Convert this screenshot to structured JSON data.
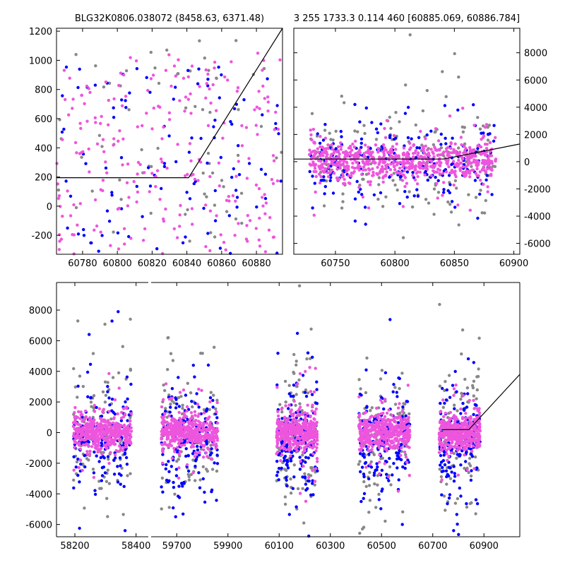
{
  "colors": {
    "series_gray": "#888888",
    "series_blue": "#0000ff",
    "series_magenta": "#ee55dd",
    "model_line": "#000000",
    "background": "#ffffff"
  },
  "chart_data": [
    {
      "id": "top-left",
      "type": "scatter",
      "title": "BLG32K0806.038072 (8458.63, 6371.48)",
      "xlim": [
        60765,
        60895
      ],
      "ylim": [
        -330,
        1220
      ],
      "xticks": [
        60780,
        60800,
        60820,
        60840,
        60860,
        60880
      ],
      "yticks": [
        -200,
        0,
        200,
        400,
        600,
        800,
        1000,
        1200
      ],
      "ytick_side": "left",
      "model_line": {
        "x": [
          60765,
          60841,
          60895
        ],
        "y": [
          195,
          195,
          1220
        ]
      },
      "series": [
        {
          "name": "gray",
          "color_key": "series_gray",
          "count": 70,
          "x_range": [
            60765,
            60895
          ],
          "y_center": 380,
          "y_spread": 800,
          "point_cloud": "uniform"
        },
        {
          "name": "blue",
          "color_key": "series_blue",
          "count": 110,
          "x_range": [
            60765,
            60895
          ],
          "y_center": 300,
          "y_spread": 700,
          "point_cloud": "uniform"
        },
        {
          "name": "magenta",
          "color_key": "series_magenta",
          "count": 260,
          "x_range": [
            60765,
            60895
          ],
          "y_center": 330,
          "y_spread": 760,
          "point_cloud": "uniform"
        }
      ]
    },
    {
      "id": "top-right",
      "type": "scatter",
      "title": "3 255 1733.3 0.114 460 [60885.069, 60886.784]",
      "xlim": [
        60715,
        60905
      ],
      "ylim": [
        -6800,
        9800
      ],
      "xticks": [
        60750,
        60800,
        60850,
        60900
      ],
      "yticks": [
        -6000,
        -4000,
        -2000,
        0,
        2000,
        4000,
        6000,
        8000
      ],
      "ytick_side": "right",
      "model_line": {
        "x": [
          60715,
          60841,
          60905
        ],
        "y": [
          195,
          195,
          1300
        ]
      },
      "series": [
        {
          "name": "gray",
          "color_key": "series_gray",
          "count": 160,
          "x_range": [
            60728,
            60885
          ],
          "y_center": 0,
          "y_spread": 1800,
          "point_cloud": "band"
        },
        {
          "name": "blue",
          "color_key": "series_blue",
          "count": 220,
          "x_range": [
            60728,
            60885
          ],
          "y_center": -200,
          "y_spread": 1500,
          "point_cloud": "band"
        },
        {
          "name": "magenta",
          "color_key": "series_magenta",
          "count": 700,
          "x_range": [
            60728,
            60885
          ],
          "y_center": 100,
          "y_spread": 700,
          "point_cloud": "band"
        }
      ]
    },
    {
      "id": "bottom",
      "type": "scatter",
      "title": "",
      "xlim": [
        58140,
        61040
      ],
      "ylim": [
        -6800,
        9800
      ],
      "xticks": [
        58200,
        58400,
        59700,
        59900,
        60100,
        60300,
        60500,
        60700,
        60900
      ],
      "yticks": [
        -6000,
        -4000,
        -2000,
        0,
        2000,
        4000,
        6000,
        8000
      ],
      "ytick_side": "left",
      "broken_axis": true,
      "segments": [
        {
          "xlim": [
            58140,
            58440
          ],
          "clusters": [
            [
              58195,
              58385
            ]
          ]
        },
        {
          "xlim": [
            59600,
            61040
          ],
          "clusters": [
            [
              59640,
              59860
            ],
            [
              60090,
              60250
            ],
            [
              60410,
              60610
            ],
            [
              60725,
              60885
            ]
          ]
        }
      ],
      "model_line": {
        "x": [
          60735,
          60841,
          61040
        ],
        "y": [
          195,
          195,
          3800
        ]
      },
      "series": [
        {
          "name": "gray",
          "color_key": "series_gray",
          "count_per_cluster": 110,
          "y_center": -200,
          "y_spread": 2200,
          "point_cloud": "band"
        },
        {
          "name": "blue",
          "color_key": "series_blue",
          "count_per_cluster": 170,
          "y_center": -400,
          "y_spread": 1600,
          "point_cloud": "band"
        },
        {
          "name": "magenta",
          "color_key": "series_magenta",
          "count_per_cluster": 420,
          "y_center": 0,
          "y_spread": 550,
          "point_cloud": "band"
        }
      ]
    }
  ]
}
